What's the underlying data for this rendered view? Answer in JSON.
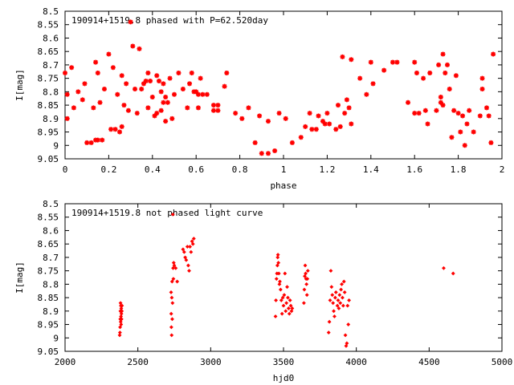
{
  "chart_data": [
    {
      "type": "scatter",
      "title": "190914+1519.8 phased with P=62.520day",
      "xlabel": "phase",
      "ylabel": "I[mag]",
      "xlim": [
        0,
        2
      ],
      "ylim": [
        9.05,
        8.5
      ],
      "y_inverted": true,
      "grid": false,
      "marker_color": "#ff0000",
      "x_ticks": [
        "0",
        "0.2",
        "0.4",
        "0.6",
        "0.8",
        "1",
        "1.2",
        "1.4",
        "1.6",
        "1.8",
        "2"
      ],
      "y_ticks": [
        "8.5",
        "8.55",
        "8.6",
        "8.65",
        "8.7",
        "8.75",
        "8.8",
        "8.85",
        "8.9",
        "8.95",
        "9",
        "9.05"
      ],
      "series": [
        {
          "points": [
            [
              0.0,
              8.73
            ],
            [
              0.01,
              8.81
            ],
            [
              0.01,
              8.9
            ],
            [
              0.03,
              8.71
            ],
            [
              0.04,
              8.86
            ],
            [
              0.06,
              8.8
            ],
            [
              0.08,
              8.83
            ],
            [
              0.09,
              8.77
            ],
            [
              0.1,
              8.99
            ],
            [
              0.12,
              8.99
            ],
            [
              0.13,
              8.86
            ],
            [
              0.14,
              8.69
            ],
            [
              0.14,
              8.98
            ],
            [
              0.15,
              8.73
            ],
            [
              0.15,
              8.98
            ],
            [
              0.16,
              8.84
            ],
            [
              0.17,
              8.98
            ],
            [
              0.18,
              8.79
            ],
            [
              0.2,
              8.66
            ],
            [
              0.21,
              8.94
            ],
            [
              0.22,
              8.71
            ],
            [
              0.23,
              8.94
            ],
            [
              0.24,
              8.81
            ],
            [
              0.25,
              8.95
            ],
            [
              0.26,
              8.74
            ],
            [
              0.26,
              8.93
            ],
            [
              0.27,
              8.85
            ],
            [
              0.28,
              8.77
            ],
            [
              0.29,
              8.87
            ],
            [
              0.3,
              8.54
            ],
            [
              0.31,
              8.63
            ],
            [
              0.32,
              8.79
            ],
            [
              0.33,
              8.88
            ],
            [
              0.34,
              8.64
            ],
            [
              0.35,
              8.79
            ],
            [
              0.36,
              8.77
            ],
            [
              0.37,
              8.76
            ],
            [
              0.38,
              8.73
            ],
            [
              0.38,
              8.86
            ],
            [
              0.39,
              8.76
            ],
            [
              0.4,
              8.82
            ],
            [
              0.41,
              8.89
            ],
            [
              0.42,
              8.88
            ],
            [
              0.42,
              8.74
            ],
            [
              0.43,
              8.76
            ],
            [
              0.44,
              8.8
            ],
            [
              0.44,
              8.87
            ],
            [
              0.45,
              8.77
            ],
            [
              0.45,
              8.84
            ],
            [
              0.46,
              8.82
            ],
            [
              0.46,
              8.91
            ],
            [
              0.47,
              8.84
            ],
            [
              0.48,
              8.75
            ],
            [
              0.49,
              8.9
            ],
            [
              0.5,
              8.81
            ],
            [
              0.52,
              8.73
            ],
            [
              0.54,
              8.79
            ],
            [
              0.56,
              8.86
            ],
            [
              0.57,
              8.77
            ],
            [
              0.58,
              8.73
            ],
            [
              0.59,
              8.8
            ],
            [
              0.6,
              8.8
            ],
            [
              0.61,
              8.81
            ],
            [
              0.61,
              8.86
            ],
            [
              0.62,
              8.75
            ],
            [
              0.63,
              8.81
            ],
            [
              0.65,
              8.81
            ],
            [
              0.68,
              8.85
            ],
            [
              0.68,
              8.87
            ],
            [
              0.7,
              8.85
            ],
            [
              0.7,
              8.87
            ],
            [
              0.73,
              8.78
            ],
            [
              0.74,
              8.73
            ],
            [
              0.78,
              8.88
            ],
            [
              0.81,
              8.9
            ],
            [
              0.84,
              8.86
            ],
            [
              0.87,
              8.99
            ],
            [
              0.89,
              8.89
            ],
            [
              0.9,
              9.03
            ],
            [
              0.93,
              9.03
            ],
            [
              0.93,
              8.91
            ],
            [
              0.96,
              9.02
            ],
            [
              0.98,
              8.88
            ],
            [
              1.01,
              8.9
            ],
            [
              1.04,
              8.99
            ],
            [
              1.08,
              8.97
            ],
            [
              1.1,
              8.93
            ],
            [
              1.12,
              8.88
            ],
            [
              1.13,
              8.94
            ],
            [
              1.15,
              8.94
            ],
            [
              1.16,
              8.89
            ],
            [
              1.18,
              8.91
            ],
            [
              1.19,
              8.92
            ],
            [
              1.2,
              8.88
            ],
            [
              1.21,
              8.92
            ],
            [
              1.24,
              8.94
            ],
            [
              1.25,
              8.85
            ],
            [
              1.26,
              8.93
            ],
            [
              1.27,
              8.67
            ],
            [
              1.28,
              8.88
            ],
            [
              1.29,
              8.83
            ],
            [
              1.3,
              8.86
            ],
            [
              1.31,
              8.92
            ],
            [
              1.31,
              8.68
            ],
            [
              1.35,
              8.75
            ],
            [
              1.38,
              8.81
            ],
            [
              1.4,
              8.69
            ],
            [
              1.41,
              8.77
            ],
            [
              1.46,
              8.72
            ],
            [
              1.5,
              8.69
            ],
            [
              1.52,
              8.69
            ],
            [
              1.57,
              8.84
            ],
            [
              1.6,
              8.88
            ],
            [
              1.6,
              8.69
            ],
            [
              1.61,
              8.73
            ],
            [
              1.62,
              8.88
            ],
            [
              1.64,
              8.75
            ],
            [
              1.65,
              8.87
            ],
            [
              1.66,
              8.92
            ],
            [
              1.67,
              8.73
            ],
            [
              1.7,
              8.87
            ],
            [
              1.71,
              8.7
            ],
            [
              1.72,
              8.84
            ],
            [
              1.72,
              8.82
            ],
            [
              1.73,
              8.66
            ],
            [
              1.73,
              8.85
            ],
            [
              1.74,
              8.73
            ],
            [
              1.75,
              8.7
            ],
            [
              1.76,
              8.79
            ],
            [
              1.77,
              8.97
            ],
            [
              1.78,
              8.87
            ],
            [
              1.79,
              8.74
            ],
            [
              1.8,
              8.88
            ],
            [
              1.81,
              8.95
            ],
            [
              1.82,
              8.89
            ],
            [
              1.83,
              9.0
            ],
            [
              1.84,
              8.92
            ],
            [
              1.85,
              8.87
            ],
            [
              1.87,
              8.95
            ],
            [
              1.9,
              8.89
            ],
            [
              1.91,
              8.79
            ],
            [
              1.91,
              8.75
            ],
            [
              1.93,
              8.86
            ],
            [
              1.94,
              8.89
            ],
            [
              1.95,
              8.99
            ],
            [
              1.96,
              8.66
            ]
          ]
        }
      ]
    },
    {
      "type": "scatter",
      "title": "190914+1519.8 not phased light curve",
      "xlabel": "hjd0",
      "ylabel": "I[mag]",
      "xlim": [
        2000,
        5000
      ],
      "ylim": [
        9.05,
        8.5
      ],
      "y_inverted": true,
      "grid": false,
      "marker_color": "#ff0000",
      "x_ticks": [
        "2000",
        "2500",
        "3000",
        "3500",
        "4000",
        "4500",
        "5000"
      ],
      "y_ticks": [
        "8.5",
        "8.55",
        "8.6",
        "8.65",
        "8.7",
        "8.75",
        "8.8",
        "8.85",
        "8.9",
        "8.95",
        "9",
        "9.05"
      ],
      "series": [
        {
          "points": [
            [
              2375,
              8.99
            ],
            [
              2377,
              8.98
            ],
            [
              2378,
              8.96
            ],
            [
              2379,
              8.93
            ],
            [
              2380,
              8.9
            ],
            [
              2381,
              8.87
            ],
            [
              2382,
              8.94
            ],
            [
              2383,
              8.88
            ],
            [
              2384,
              8.92
            ],
            [
              2385,
              8.95
            ],
            [
              2386,
              8.89
            ],
            [
              2387,
              8.91
            ],
            [
              2388,
              8.93
            ],
            [
              2390,
              8.9
            ],
            [
              2391,
              8.88
            ],
            [
              2728,
              8.83
            ],
            [
              2729,
              8.91
            ],
            [
              2730,
              8.96
            ],
            [
              2732,
              8.99
            ],
            [
              2733,
              8.85
            ],
            [
              2735,
              8.79
            ],
            [
              2736,
              8.93
            ],
            [
              2738,
              8.87
            ],
            [
              2740,
              8.54
            ],
            [
              2742,
              8.74
            ],
            [
              2744,
              8.78
            ],
            [
              2746,
              8.72
            ],
            [
              2750,
              8.73
            ],
            [
              2760,
              8.74
            ],
            [
              2770,
              8.79
            ],
            [
              2810,
              8.67
            ],
            [
              2818,
              8.68
            ],
            [
              2825,
              8.7
            ],
            [
              2832,
              8.71
            ],
            [
              2840,
              8.66
            ],
            [
              2846,
              8.73
            ],
            [
              2852,
              8.75
            ],
            [
              2858,
              8.66
            ],
            [
              2865,
              8.68
            ],
            [
              2872,
              8.64
            ],
            [
              2878,
              8.65
            ],
            [
              2884,
              8.63
            ],
            [
              3445,
              8.92
            ],
            [
              3448,
              8.86
            ],
            [
              3452,
              8.78
            ],
            [
              3455,
              8.76
            ],
            [
              3458,
              8.73
            ],
            [
              3460,
              8.7
            ],
            [
              3462,
              8.69
            ],
            [
              3465,
              8.72
            ],
            [
              3468,
              8.76
            ],
            [
              3472,
              8.8
            ],
            [
              3475,
              8.79
            ],
            [
              3480,
              8.82
            ],
            [
              3485,
              8.86
            ],
            [
              3490,
              8.91
            ],
            [
              3495,
              8.85
            ],
            [
              3500,
              8.88
            ],
            [
              3505,
              8.84
            ],
            [
              3510,
              8.76
            ],
            [
              3515,
              8.9
            ],
            [
              3520,
              8.87
            ],
            [
              3525,
              8.81
            ],
            [
              3530,
              8.85
            ],
            [
              3535,
              8.89
            ],
            [
              3540,
              8.91
            ],
            [
              3545,
              8.86
            ],
            [
              3550,
              8.88
            ],
            [
              3555,
              8.9
            ],
            [
              3560,
              8.89
            ],
            [
              3640,
              8.87
            ],
            [
              3643,
              8.82
            ],
            [
              3646,
              8.77
            ],
            [
              3649,
              8.73
            ],
            [
              3652,
              8.76
            ],
            [
              3655,
              8.78
            ],
            [
              3658,
              8.8
            ],
            [
              3661,
              8.84
            ],
            [
              3664,
              8.78
            ],
            [
              3667,
              8.75
            ],
            [
              3810,
              8.98
            ],
            [
              3815,
              8.94
            ],
            [
              3820,
              8.86
            ],
            [
              3825,
              8.75
            ],
            [
              3830,
              8.81
            ],
            [
              3835,
              8.84
            ],
            [
              3840,
              8.87
            ],
            [
              3845,
              8.9
            ],
            [
              3850,
              8.92
            ],
            [
              3855,
              8.85
            ],
            [
              3860,
              8.83
            ],
            [
              3870,
              8.88
            ],
            [
              3875,
              8.86
            ],
            [
              3880,
              8.89
            ],
            [
              3885,
              8.84
            ],
            [
              3890,
              8.87
            ],
            [
              3895,
              8.82
            ],
            [
              3900,
              8.8
            ],
            [
              3905,
              8.85
            ],
            [
              3910,
              8.88
            ],
            [
              3915,
              8.79
            ],
            [
              3920,
              8.83
            ],
            [
              3925,
              8.99
            ],
            [
              3930,
              9.03
            ],
            [
              3935,
              9.02
            ],
            [
              3940,
              8.88
            ],
            [
              3945,
              8.95
            ],
            [
              3950,
              8.86
            ],
            [
              4600,
              8.74
            ],
            [
              4665,
              8.76
            ]
          ]
        }
      ]
    }
  ]
}
